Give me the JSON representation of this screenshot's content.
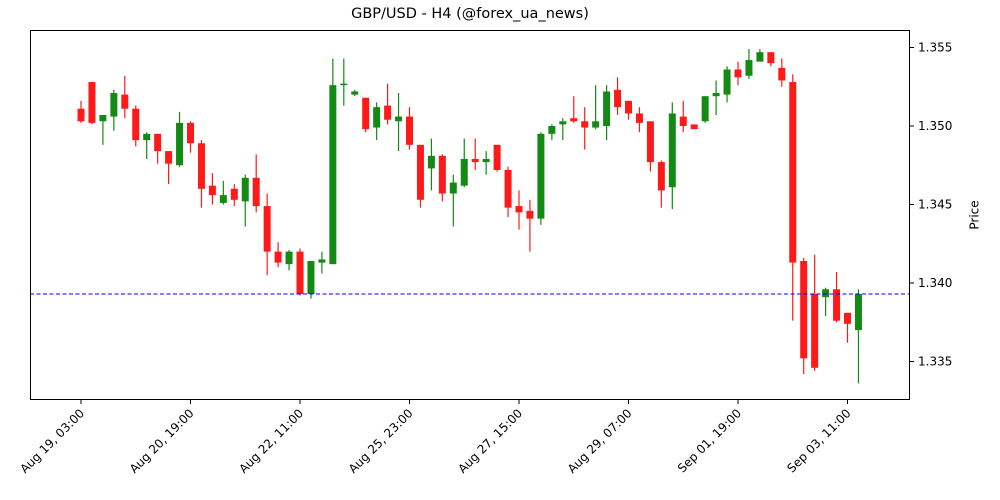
{
  "header": {
    "title": "GBP/USD - H4 (@forex_ua_news)"
  },
  "chart_data": {
    "type": "candlestick",
    "title": "GBP/USD - H4 (@forex_ua_news)",
    "xlabel": "",
    "ylabel": "Price",
    "ylim": [
      1.3326,
      1.3562
    ],
    "y_ticks": [
      1.335,
      1.34,
      1.345,
      1.35,
      1.355
    ],
    "y_tick_labels": [
      "1.335",
      "1.340",
      "1.345",
      "1.350",
      "1.355"
    ],
    "x_tick_labels": [
      "Aug 19, 03:00",
      "Aug 20, 19:00",
      "Aug 22, 11:00",
      "Aug 25, 23:00",
      "Aug 27, 15:00",
      "Aug 29, 07:00",
      "Sep 01, 19:00",
      "Sep 03, 11:00"
    ],
    "x_tick_index": [
      0,
      10,
      20,
      30,
      40,
      50,
      60,
      70
    ],
    "up_color": "#138a13",
    "down_color": "#ff1a1a",
    "grid": false,
    "legend": null,
    "horizontal_line": {
      "value": 1.3393,
      "color": "#0000ff",
      "style": "dashed"
    },
    "candles": [
      {
        "o": 1.3511,
        "h": 1.3516,
        "l": 1.3502,
        "c": 1.3503
      },
      {
        "o": 1.3528,
        "h": 1.3528,
        "l": 1.3501,
        "c": 1.3502
      },
      {
        "o": 1.3503,
        "h": 1.3506,
        "l": 1.3488,
        "c": 1.3507
      },
      {
        "o": 1.3506,
        "h": 1.3523,
        "l": 1.3497,
        "c": 1.3521
      },
      {
        "o": 1.352,
        "h": 1.3532,
        "l": 1.3505,
        "c": 1.3511
      },
      {
        "o": 1.3511,
        "h": 1.3513,
        "l": 1.3487,
        "c": 1.3491
      },
      {
        "o": 1.3491,
        "h": 1.3496,
        "l": 1.3479,
        "c": 1.3495
      },
      {
        "o": 1.3495,
        "h": 1.3495,
        "l": 1.3476,
        "c": 1.3484
      },
      {
        "o": 1.3484,
        "h": 1.3484,
        "l": 1.3463,
        "c": 1.3476
      },
      {
        "o": 1.3475,
        "h": 1.3509,
        "l": 1.3474,
        "c": 1.3502
      },
      {
        "o": 1.3502,
        "h": 1.3503,
        "l": 1.3483,
        "c": 1.3489
      },
      {
        "o": 1.3489,
        "h": 1.3491,
        "l": 1.3448,
        "c": 1.346
      },
      {
        "o": 1.3462,
        "h": 1.347,
        "l": 1.345,
        "c": 1.3456
      },
      {
        "o": 1.3451,
        "h": 1.3465,
        "l": 1.345,
        "c": 1.3456
      },
      {
        "o": 1.346,
        "h": 1.3463,
        "l": 1.3449,
        "c": 1.3453
      },
      {
        "o": 1.3452,
        "h": 1.3469,
        "l": 1.3436,
        "c": 1.3467
      },
      {
        "o": 1.3467,
        "h": 1.3482,
        "l": 1.3445,
        "c": 1.3449
      },
      {
        "o": 1.3449,
        "h": 1.3457,
        "l": 1.3405,
        "c": 1.342
      },
      {
        "o": 1.342,
        "h": 1.3426,
        "l": 1.341,
        "c": 1.3413
      },
      {
        "o": 1.3412,
        "h": 1.3421,
        "l": 1.3408,
        "c": 1.342
      },
      {
        "o": 1.342,
        "h": 1.3422,
        "l": 1.3392,
        "c": 1.3393
      },
      {
        "o": 1.3393,
        "h": 1.3414,
        "l": 1.339,
        "c": 1.3414
      },
      {
        "o": 1.3413,
        "h": 1.342,
        "l": 1.3406,
        "c": 1.3415
      },
      {
        "o": 1.3412,
        "h": 1.3543,
        "l": 1.3412,
        "c": 1.3526
      },
      {
        "o": 1.3526,
        "h": 1.3543,
        "l": 1.3513,
        "c": 1.3527
      },
      {
        "o": 1.352,
        "h": 1.3523,
        "l": 1.3519,
        "c": 1.3522
      },
      {
        "o": 1.3518,
        "h": 1.3518,
        "l": 1.3496,
        "c": 1.3498
      },
      {
        "o": 1.3499,
        "h": 1.3515,
        "l": 1.3491,
        "c": 1.3512
      },
      {
        "o": 1.3513,
        "h": 1.3527,
        "l": 1.3501,
        "c": 1.3504
      },
      {
        "o": 1.3503,
        "h": 1.3521,
        "l": 1.3484,
        "c": 1.3506
      },
      {
        "o": 1.3506,
        "h": 1.3512,
        "l": 1.3485,
        "c": 1.3488
      },
      {
        "o": 1.3488,
        "h": 1.3488,
        "l": 1.3448,
        "c": 1.3453
      },
      {
        "o": 1.3473,
        "h": 1.3492,
        "l": 1.3459,
        "c": 1.3481
      },
      {
        "o": 1.3481,
        "h": 1.3482,
        "l": 1.3452,
        "c": 1.3457
      },
      {
        "o": 1.3457,
        "h": 1.3469,
        "l": 1.3436,
        "c": 1.3464
      },
      {
        "o": 1.3462,
        "h": 1.3492,
        "l": 1.3461,
        "c": 1.3479
      },
      {
        "o": 1.3479,
        "h": 1.3492,
        "l": 1.3472,
        "c": 1.3477
      },
      {
        "o": 1.3477,
        "h": 1.3484,
        "l": 1.3469,
        "c": 1.3479
      },
      {
        "o": 1.3488,
        "h": 1.3488,
        "l": 1.3471,
        "c": 1.3472
      },
      {
        "o": 1.3472,
        "h": 1.3474,
        "l": 1.3442,
        "c": 1.3448
      },
      {
        "o": 1.3449,
        "h": 1.3459,
        "l": 1.3434,
        "c": 1.3445
      },
      {
        "o": 1.3446,
        "h": 1.3453,
        "l": 1.342,
        "c": 1.3441
      },
      {
        "o": 1.3441,
        "h": 1.3496,
        "l": 1.3437,
        "c": 1.3495
      },
      {
        "o": 1.3495,
        "h": 1.3501,
        "l": 1.3491,
        "c": 1.35
      },
      {
        "o": 1.3501,
        "h": 1.3505,
        "l": 1.3491,
        "c": 1.3503
      },
      {
        "o": 1.3505,
        "h": 1.3519,
        "l": 1.3502,
        "c": 1.3503
      },
      {
        "o": 1.3503,
        "h": 1.3512,
        "l": 1.3485,
        "c": 1.3499
      },
      {
        "o": 1.3499,
        "h": 1.3526,
        "l": 1.3498,
        "c": 1.3503
      },
      {
        "o": 1.35,
        "h": 1.3526,
        "l": 1.3491,
        "c": 1.3522
      },
      {
        "o": 1.3523,
        "h": 1.3531,
        "l": 1.3507,
        "c": 1.3512
      },
      {
        "o": 1.3516,
        "h": 1.3516,
        "l": 1.3504,
        "c": 1.3508
      },
      {
        "o": 1.3508,
        "h": 1.3512,
        "l": 1.3496,
        "c": 1.3502
      },
      {
        "o": 1.3503,
        "h": 1.3503,
        "l": 1.3471,
        "c": 1.3477
      },
      {
        "o": 1.3477,
        "h": 1.3478,
        "l": 1.3448,
        "c": 1.3459
      },
      {
        "o": 1.3461,
        "h": 1.3515,
        "l": 1.3447,
        "c": 1.3508
      },
      {
        "o": 1.3506,
        "h": 1.3516,
        "l": 1.3496,
        "c": 1.35
      },
      {
        "o": 1.3501,
        "h": 1.3501,
        "l": 1.3498,
        "c": 1.3498
      },
      {
        "o": 1.3503,
        "h": 1.3519,
        "l": 1.3502,
        "c": 1.3519
      },
      {
        "o": 1.3519,
        "h": 1.3529,
        "l": 1.3507,
        "c": 1.3521
      },
      {
        "o": 1.352,
        "h": 1.3538,
        "l": 1.3515,
        "c": 1.3536
      },
      {
        "o": 1.3536,
        "h": 1.3541,
        "l": 1.3526,
        "c": 1.3531
      },
      {
        "o": 1.3532,
        "h": 1.3549,
        "l": 1.353,
        "c": 1.3542
      },
      {
        "o": 1.3541,
        "h": 1.3549,
        "l": 1.3541,
        "c": 1.3547
      },
      {
        "o": 1.3547,
        "h": 1.3547,
        "l": 1.3538,
        "c": 1.354
      },
      {
        "o": 1.3537,
        "h": 1.3543,
        "l": 1.3525,
        "c": 1.3529
      },
      {
        "o": 1.3528,
        "h": 1.3533,
        "l": 1.3376,
        "c": 1.3413
      },
      {
        "o": 1.3414,
        "h": 1.3416,
        "l": 1.3342,
        "c": 1.3352
      },
      {
        "o": 1.3393,
        "h": 1.3418,
        "l": 1.3344,
        "c": 1.3346
      },
      {
        "o": 1.3391,
        "h": 1.3397,
        "l": 1.3379,
        "c": 1.3396
      },
      {
        "o": 1.3396,
        "h": 1.3407,
        "l": 1.3375,
        "c": 1.3376
      },
      {
        "o": 1.3381,
        "h": 1.3381,
        "l": 1.3362,
        "c": 1.3374
      },
      {
        "o": 1.337,
        "h": 1.3396,
        "l": 1.3336,
        "c": 1.3393
      }
    ]
  }
}
